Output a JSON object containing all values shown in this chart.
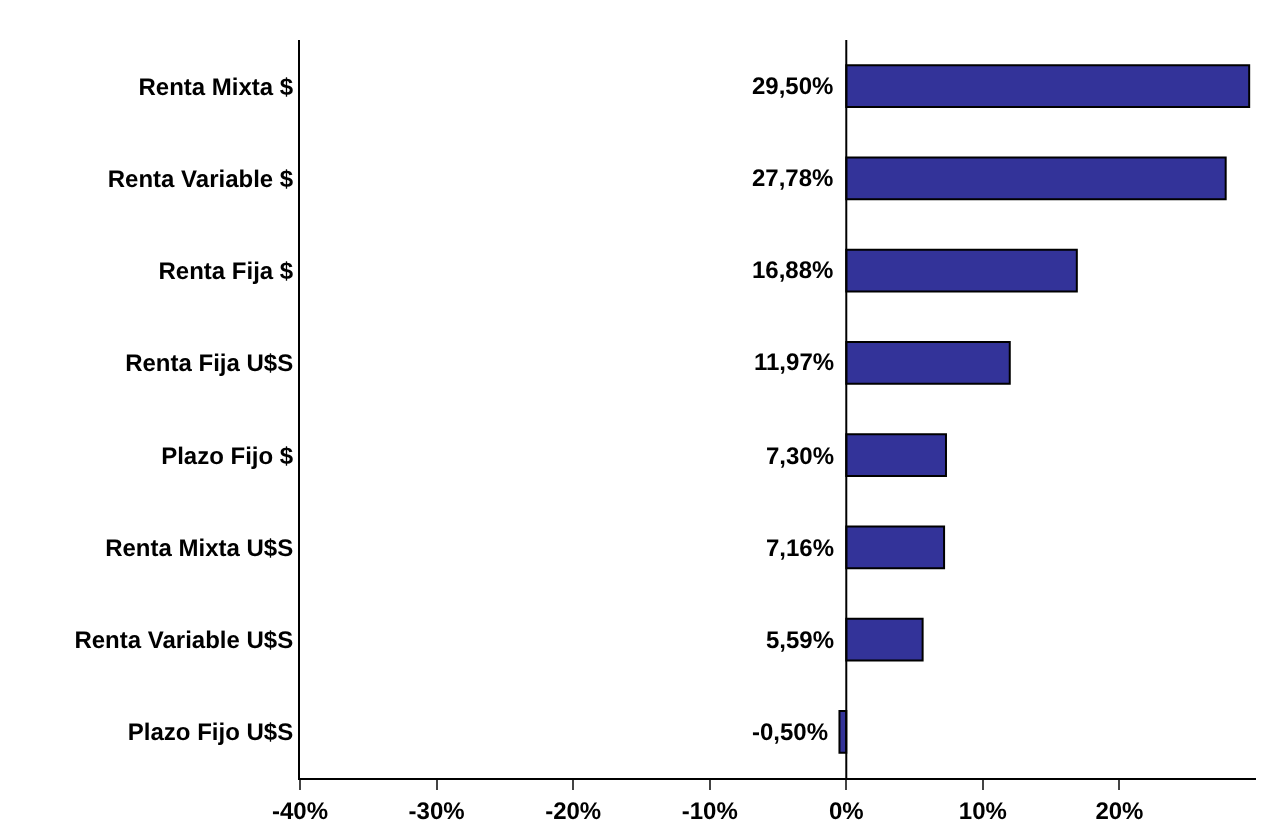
{
  "chart_data": {
    "type": "bar",
    "orientation": "horizontal",
    "categories": [
      "Renta Mixta $",
      "Renta Variable $",
      "Renta Fija $",
      "Renta Fija U$S",
      "Plazo Fijo $",
      "Renta Mixta U$S",
      "Renta Variable U$S",
      "Plazo Fijo U$S"
    ],
    "values": [
      29.5,
      27.78,
      16.88,
      11.97,
      7.3,
      7.16,
      5.59,
      -0.5
    ],
    "value_labels": [
      "29,50%",
      "27,78%",
      "16,88%",
      "11,97%",
      "7,30%",
      "7,16%",
      "5,59%",
      "-0,50%"
    ],
    "data_labels": true,
    "color": "#333399",
    "xlim": [
      -40,
      30
    ],
    "xticks": [
      {
        "value": -40,
        "label": "-40%"
      },
      {
        "value": -30,
        "label": "-30%"
      },
      {
        "value": -20,
        "label": "-20%"
      },
      {
        "value": -10,
        "label": "-10%"
      },
      {
        "value": 0,
        "label": "0%"
      },
      {
        "value": 10,
        "label": "10%"
      },
      {
        "value": 20,
        "label": "20%"
      }
    ],
    "ref_lines": [
      {
        "axis": "x",
        "value": 0,
        "color": "#000000"
      }
    ],
    "grid": false,
    "legend": false
  }
}
